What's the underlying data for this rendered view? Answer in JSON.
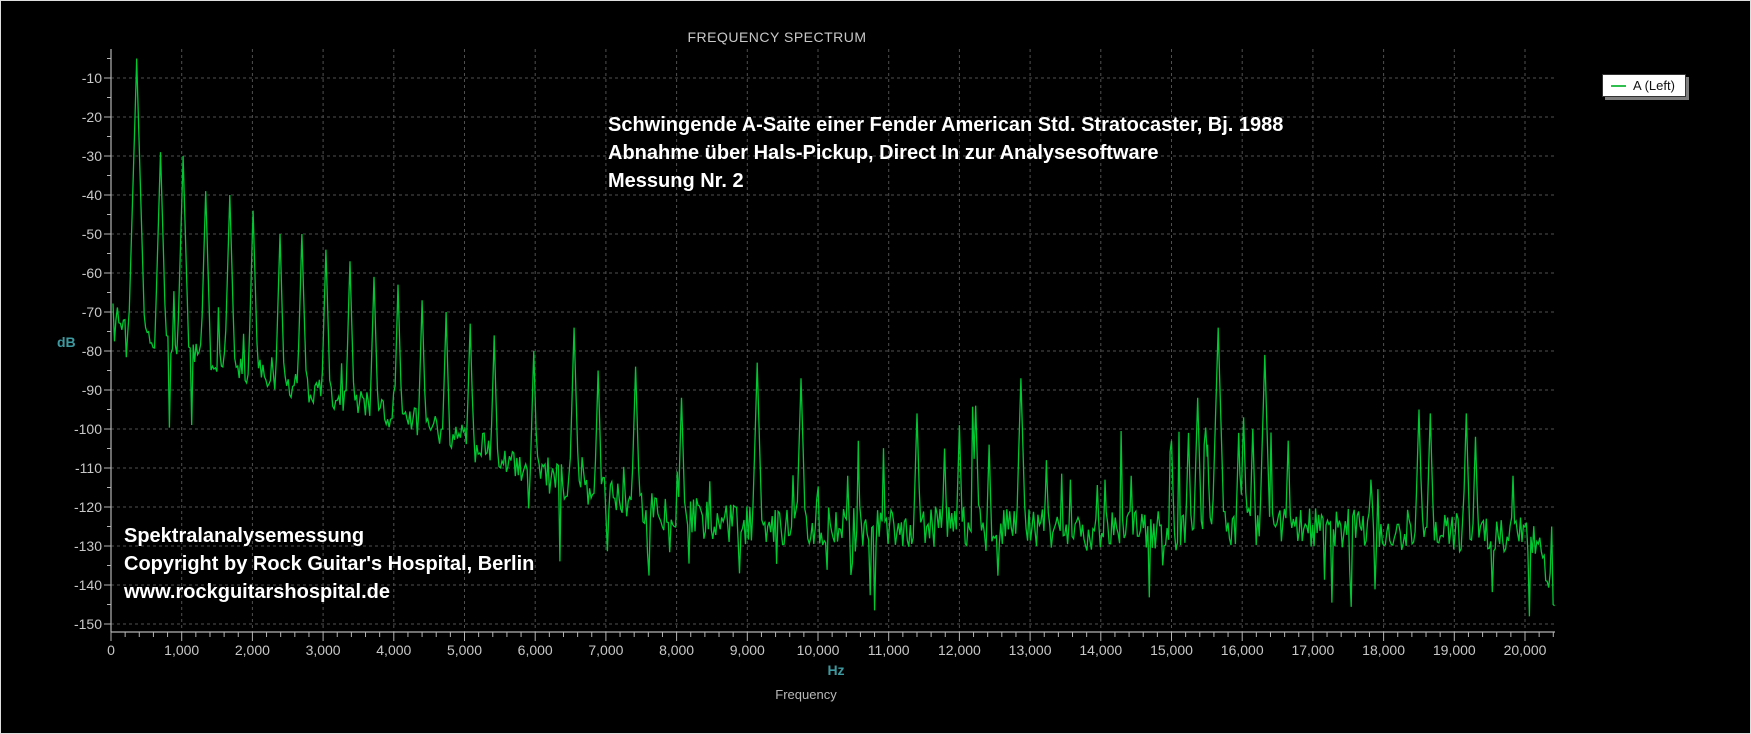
{
  "window": {
    "background": "#000000",
    "frame_border": "#dedede"
  },
  "legend": {
    "label": "A (Left)",
    "swatch_color": "#2fbf4f",
    "position": "top-right"
  },
  "labels": {
    "db_unit": "dB",
    "hz_unit": "Hz",
    "x_axis_title": "Frequency"
  },
  "annotations": {
    "top": {
      "line1": "Schwingende A-Saite einer Fender American Std. Stratocaster, Bj. 1988",
      "line2": "Abnahme über Hals-Pickup, Direct In zur Analysesoftware",
      "line3": "Messung Nr. 2"
    },
    "bottom": {
      "line1": "Spektralanalysemessung",
      "line2": "Copyright by Rock Guitar's Hospital, Berlin",
      "line3": "www.rockguitarshospital.de"
    }
  },
  "chart_data": {
    "type": "line",
    "title": "FREQUENCY SPECTRUM",
    "xlabel": "Frequency",
    "x_unit": "Hz",
    "ylabel": "dB",
    "xlim": [
      0,
      20440
    ],
    "ylim": [
      -150,
      -2
    ],
    "grid": "dashed",
    "legend_entries": [
      {
        "label": "A (Left)",
        "color": "#00c832"
      }
    ],
    "x_tick_labels": [
      "0",
      "1,000",
      "2,000",
      "3,000",
      "4,000",
      "5,000",
      "6,000",
      "7,000",
      "8,000",
      "9,000",
      "10,000",
      "11,000",
      "12,000",
      "13,000",
      "14,000",
      "15,000",
      "16,000",
      "17,000",
      "18,000",
      "19,000",
      "20,000"
    ],
    "x_tick_values": [
      0,
      1000,
      2000,
      3000,
      4000,
      5000,
      6000,
      7000,
      8000,
      9000,
      10000,
      11000,
      12000,
      13000,
      14000,
      15000,
      16000,
      17000,
      18000,
      19000,
      20000
    ],
    "x_minor_step": 200,
    "y_tick_labels": [
      "-10",
      "-20",
      "-30",
      "-40",
      "-50",
      "-60",
      "-70",
      "-80",
      "-90",
      "-100",
      "-110",
      "-120",
      "-130",
      "-140",
      "-150"
    ],
    "y_tick_values": [
      -10,
      -20,
      -30,
      -40,
      -50,
      -60,
      -70,
      -80,
      -90,
      -100,
      -110,
      -120,
      -130,
      -140,
      -150
    ],
    "y_minor_step": 5,
    "series_name": "A (Left)",
    "peaks_hz_db": [
      [
        363,
        -5
      ],
      [
        700,
        -29
      ],
      [
        1020,
        -30
      ],
      [
        1340,
        -39
      ],
      [
        1680,
        -40
      ],
      [
        2010,
        -44
      ],
      [
        2390,
        -50
      ],
      [
        2700,
        -50
      ],
      [
        3040,
        -54
      ],
      [
        3380,
        -57
      ],
      [
        3720,
        -61
      ],
      [
        4060,
        -63
      ],
      [
        4400,
        -67
      ],
      [
        4740,
        -70
      ],
      [
        5080,
        -73
      ],
      [
        5420,
        -76
      ],
      [
        5980,
        -80
      ],
      [
        6550,
        -74
      ],
      [
        6890,
        -85
      ],
      [
        7420,
        -84
      ],
      [
        8070,
        -92
      ],
      [
        9140,
        -83
      ],
      [
        9760,
        -87
      ],
      [
        10420,
        -112
      ],
      [
        10580,
        -113
      ],
      [
        11400,
        -96
      ],
      [
        11790,
        -105
      ],
      [
        12000,
        -99
      ],
      [
        12230,
        -94
      ],
      [
        12420,
        -104
      ],
      [
        12870,
        -87
      ],
      [
        13230,
        -108
      ],
      [
        13570,
        -113
      ],
      [
        14060,
        -113
      ],
      [
        14430,
        -112
      ],
      [
        15000,
        -103
      ],
      [
        15240,
        -101
      ],
      [
        15370,
        -92
      ],
      [
        15510,
        -104
      ],
      [
        15660,
        -74
      ],
      [
        15950,
        -101
      ],
      [
        16020,
        -97
      ],
      [
        16150,
        -100
      ],
      [
        16320,
        -81
      ],
      [
        16650,
        -103
      ],
      [
        17820,
        -113
      ],
      [
        18500,
        -95
      ],
      [
        18660,
        -96
      ],
      [
        19170,
        -96
      ],
      [
        19300,
        -102
      ],
      [
        19830,
        -112
      ]
    ],
    "noise_floor_hz_db": [
      [
        0,
        -67
      ],
      [
        120,
        -72
      ],
      [
        300,
        -75
      ],
      [
        600,
        -77
      ],
      [
        900,
        -79
      ],
      [
        1400,
        -82
      ],
      [
        2000,
        -86
      ],
      [
        2600,
        -89
      ],
      [
        3200,
        -92
      ],
      [
        3800,
        -95
      ],
      [
        4400,
        -99
      ],
      [
        5000,
        -103
      ],
      [
        5600,
        -108
      ],
      [
        6200,
        -112
      ],
      [
        6800,
        -116
      ],
      [
        7400,
        -119
      ],
      [
        8000,
        -122
      ],
      [
        8600,
        -124
      ],
      [
        9400,
        -125
      ],
      [
        10500,
        -125
      ],
      [
        12000,
        -125
      ],
      [
        13500,
        -126
      ],
      [
        15000,
        -126
      ],
      [
        16500,
        -125
      ],
      [
        18000,
        -126
      ],
      [
        19500,
        -127
      ],
      [
        20150,
        -128
      ],
      [
        20320,
        -137
      ],
      [
        20430,
        -144
      ]
    ],
    "colors": {
      "trace": "#00c832",
      "grid": "#4f4f4f",
      "axis": "#b4b4b4",
      "tick_label": "#c8c8c8",
      "title": "#c8c8c8",
      "unit_label": "#3d9aa0",
      "annotation": "#ffffff",
      "background": "#000000"
    },
    "render": {
      "seed": 13,
      "peak_slope_db_per_hz": 0.62,
      "sample_step_hz": 21,
      "jitter_db_min": 2.6,
      "jitter_db_max": 5.2,
      "dip_probability": 0.045,
      "dip_extra_db": 16,
      "spike_probability": 0.042,
      "spike_band_hz": [
        10300,
        17300
      ]
    }
  }
}
